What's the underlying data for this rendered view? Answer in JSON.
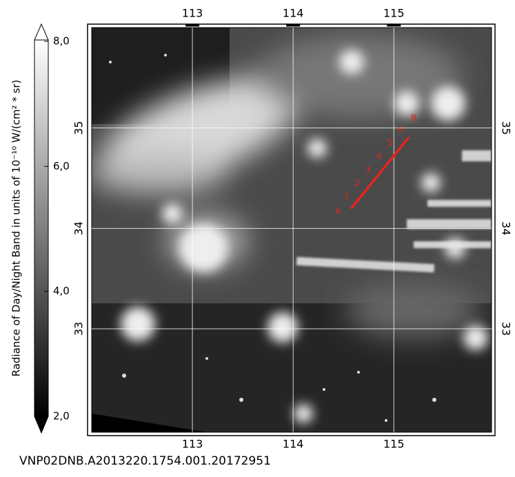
{
  "colorbar": {
    "label": "Radiance of Day/Night Band in units of 10⁻¹⁰ W/(cm² * sr)",
    "lim": [
      2,
      8
    ],
    "ticks": [
      {
        "value": 2,
        "label": "2,0"
      },
      {
        "value": 4,
        "label": "4,0"
      },
      {
        "value": 6,
        "label": "6,0"
      },
      {
        "value": 8,
        "label": "8,0"
      }
    ]
  },
  "map": {
    "xlim": [
      112,
      115.97
    ],
    "ylim": [
      31.97,
      36
    ],
    "lon_ticks": [
      113,
      114,
      115
    ],
    "lat_ticks": [
      33,
      34,
      35
    ],
    "transect": {
      "lon": [
        114.574,
        115.149
      ],
      "lat": [
        34.195,
        34.908
      ],
      "color": "#e8231b",
      "labels": [
        "A",
        "1",
        "2",
        "3",
        "4",
        "5",
        "6",
        "B"
      ]
    }
  },
  "filename": "VNP02DNB.A2013220.1754.001.20172951"
}
